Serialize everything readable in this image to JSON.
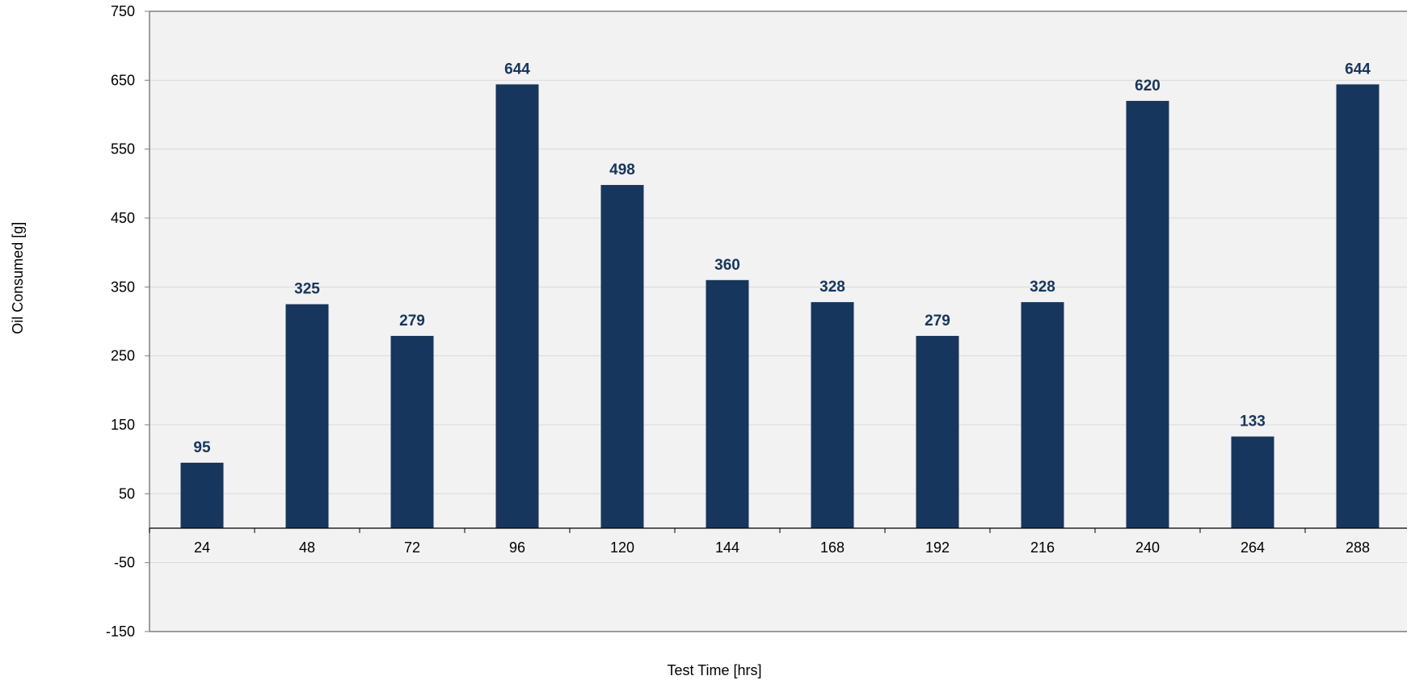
{
  "chart_data": {
    "type": "bar",
    "title": "",
    "xlabel": "Test Time [hrs]",
    "ylabel": "Oil Consumed [g]",
    "categories": [
      "24",
      "48",
      "72",
      "96",
      "120",
      "144",
      "168",
      "192",
      "216",
      "240",
      "264",
      "288"
    ],
    "series": [
      {
        "values": [
          95,
          325,
          279,
          644,
          498,
          360,
          328,
          279,
          328,
          620,
          133,
          644
        ],
        "color": "#17365d"
      }
    ],
    "data_labels": [
      "95",
      "325",
      "279",
      "644",
      "498",
      "360",
      "328",
      "279",
      "328",
      "620",
      "133",
      "644"
    ],
    "ylim": [
      -150,
      750
    ],
    "yticks": [
      -150,
      -50,
      50,
      150,
      250,
      350,
      450,
      550,
      650,
      750
    ],
    "ytick_labels": [
      "-150",
      "-50",
      "50",
      "150",
      "250",
      "350",
      "450",
      "550",
      "650",
      "750"
    ],
    "grid": true,
    "legend": "none",
    "colors": {
      "plot_background": "#f2f2f2",
      "gridline": "#d9d9d9",
      "axis_line": "#000000",
      "data_label": "#17365d"
    }
  }
}
